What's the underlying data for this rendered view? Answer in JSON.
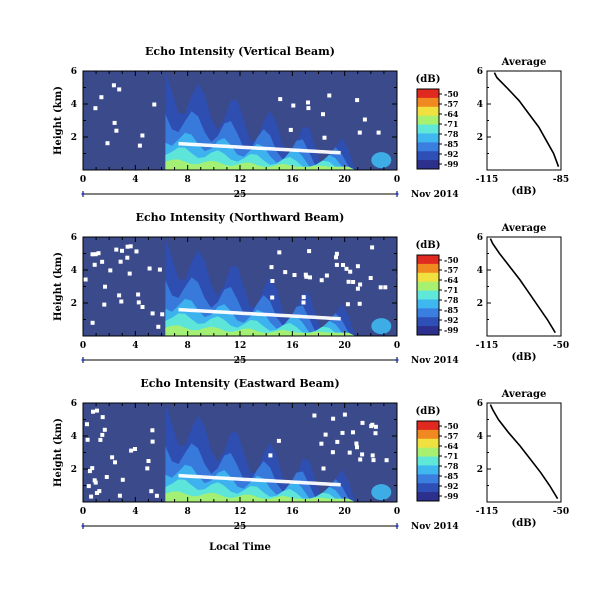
{
  "chart_data": [
    {
      "type": "heatmap",
      "title": "Echo Intensity (Vertical Beam)",
      "ylabel": "Height (km)",
      "x_ticks": [
        "0",
        "4",
        "8",
        "12",
        "16",
        "20",
        "0"
      ],
      "y_ticks": [
        "6",
        "4",
        "2"
      ],
      "xlim": [
        0,
        24
      ],
      "ylim": [
        0,
        6
      ],
      "date_label": "25",
      "month_year": "Nov 2014",
      "colorbar": {
        "unit": "(dB)",
        "ticks": [
          "-50",
          "-57",
          "-64",
          "-71",
          "-78",
          "-85",
          "-92",
          "-99"
        ]
      },
      "average": {
        "title": "Average",
        "xlabel": "(dB)",
        "x_ticks": [
          "-115",
          "-85"
        ],
        "y_ticks": [
          "6",
          "4",
          "2"
        ],
        "xlim": [
          -115,
          -85
        ],
        "ylim": [
          0,
          6
        ],
        "profile": [
          [
            -86,
            0.2
          ],
          [
            -88,
            1.0
          ],
          [
            -91,
            1.8
          ],
          [
            -94,
            2.6
          ],
          [
            -98,
            3.4
          ],
          [
            -102,
            4.2
          ],
          [
            -107,
            5.0
          ],
          [
            -111,
            5.6
          ],
          [
            -112,
            5.9
          ]
        ]
      }
    },
    {
      "type": "heatmap",
      "title": "Echo Intensity (Northward Beam)",
      "ylabel": "Height (km)",
      "x_ticks": [
        "0",
        "4",
        "8",
        "12",
        "16",
        "20",
        "0"
      ],
      "y_ticks": [
        "6",
        "4",
        "2"
      ],
      "xlim": [
        0,
        24
      ],
      "ylim": [
        0,
        6
      ],
      "date_label": "25",
      "month_year": "Nov 2014",
      "colorbar": {
        "unit": "(dB)",
        "ticks": [
          "-50",
          "-57",
          "-64",
          "-71",
          "-78",
          "-85",
          "-92",
          "-99"
        ]
      },
      "average": {
        "title": "Average",
        "xlabel": "(dB)",
        "x_ticks": [
          "-115",
          "-50"
        ],
        "y_ticks": [
          "6",
          "4",
          "2"
        ],
        "xlim": [
          -115,
          -50
        ],
        "ylim": [
          0,
          6
        ],
        "profile": [
          [
            -55,
            0.2
          ],
          [
            -62,
            1.0
          ],
          [
            -70,
            1.8
          ],
          [
            -78,
            2.6
          ],
          [
            -86,
            3.4
          ],
          [
            -95,
            4.2
          ],
          [
            -104,
            5.0
          ],
          [
            -110,
            5.6
          ],
          [
            -112,
            5.9
          ]
        ]
      }
    },
    {
      "type": "heatmap",
      "title": "Echo Intensity (Eastward Beam)",
      "ylabel": "Height (km)",
      "xlabel": "Local Time",
      "x_ticks": [
        "0",
        "4",
        "8",
        "12",
        "16",
        "20",
        "0"
      ],
      "y_ticks": [
        "6",
        "4",
        "2"
      ],
      "xlim": [
        0,
        24
      ],
      "ylim": [
        0,
        6
      ],
      "date_label": "25",
      "month_year": "Nov 2014",
      "colorbar": {
        "unit": "(dB)",
        "ticks": [
          "-50",
          "-57",
          "-64",
          "-71",
          "-78",
          "-85",
          "-92",
          "-99"
        ]
      },
      "average": {
        "title": "Average",
        "xlabel": "(dB)",
        "x_ticks": [
          "-115",
          "-50"
        ],
        "y_ticks": [
          "6",
          "4",
          "2"
        ],
        "xlim": [
          -115,
          -50
        ],
        "ylim": [
          0,
          6
        ],
        "profile": [
          [
            -53,
            0.2
          ],
          [
            -60,
            1.0
          ],
          [
            -68,
            1.8
          ],
          [
            -77,
            2.6
          ],
          [
            -86,
            3.4
          ],
          [
            -96,
            4.2
          ],
          [
            -105,
            5.0
          ],
          [
            -110,
            5.6
          ],
          [
            -112,
            5.9
          ]
        ]
      }
    }
  ],
  "colors": {
    "background_field": "#3a4a8a",
    "scale": [
      "#2c2f8c",
      "#2e4fb6",
      "#3a7fe0",
      "#3fb8f0",
      "#5fe8d8",
      "#a8f070",
      "#f0e040",
      "#f08a20",
      "#e02a20"
    ],
    "missing": "#ffffff"
  }
}
